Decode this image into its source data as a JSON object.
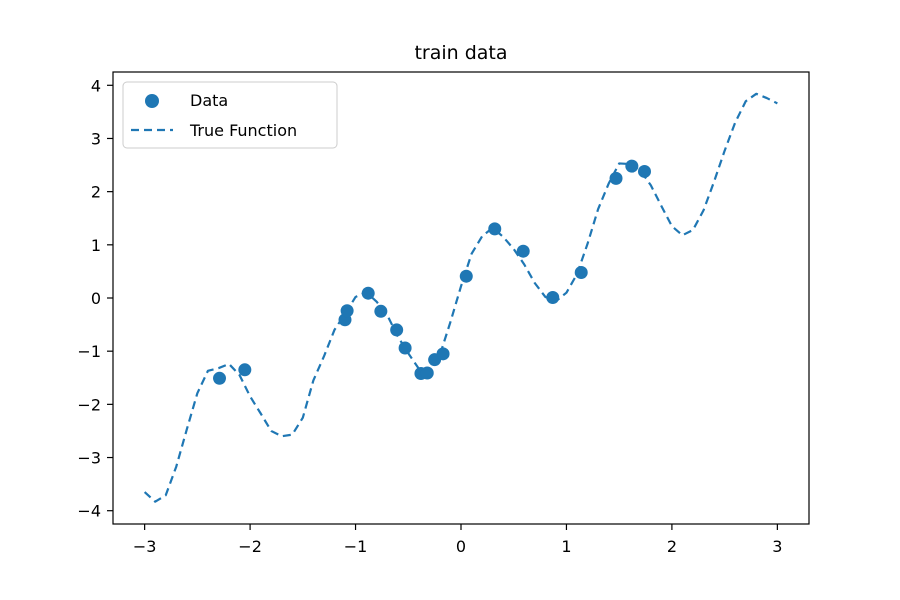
{
  "chart_data": {
    "type": "scatter",
    "title": "train data",
    "xlabel": "",
    "ylabel": "",
    "xlim": [
      -3.3,
      3.3
    ],
    "ylim": [
      -4.25,
      4.25
    ],
    "xticks": [
      -3,
      -2,
      -1,
      0,
      1,
      2,
      3
    ],
    "yticks": [
      -4,
      -3,
      -2,
      -1,
      0,
      1,
      2,
      3,
      4
    ],
    "xtick_labels": [
      "−3",
      "−2",
      "−1",
      "0",
      "1",
      "2",
      "3"
    ],
    "ytick_labels": [
      "−4",
      "−3",
      "−2",
      "−1",
      "0",
      "1",
      "2",
      "3",
      "4"
    ],
    "grid": false,
    "legend_position": "top-left",
    "series": [
      {
        "name": "Data",
        "kind": "scatter",
        "color": "#1f77b4",
        "points": [
          {
            "x": -2.29,
            "y": -1.51
          },
          {
            "x": -2.05,
            "y": -1.35
          },
          {
            "x": -1.1,
            "y": -0.41
          },
          {
            "x": -1.08,
            "y": -0.24
          },
          {
            "x": -0.88,
            "y": 0.09
          },
          {
            "x": -0.76,
            "y": -0.25
          },
          {
            "x": -0.61,
            "y": -0.6
          },
          {
            "x": -0.53,
            "y": -0.94
          },
          {
            "x": -0.38,
            "y": -1.42
          },
          {
            "x": -0.32,
            "y": -1.41
          },
          {
            "x": -0.25,
            "y": -1.16
          },
          {
            "x": -0.17,
            "y": -1.05
          },
          {
            "x": 0.05,
            "y": 0.41
          },
          {
            "x": 0.32,
            "y": 1.3
          },
          {
            "x": 0.59,
            "y": 0.88
          },
          {
            "x": 0.87,
            "y": 0.01
          },
          {
            "x": 1.14,
            "y": 0.48
          },
          {
            "x": 1.47,
            "y": 2.25
          },
          {
            "x": 1.62,
            "y": 2.48
          },
          {
            "x": 1.74,
            "y": 2.38
          }
        ]
      },
      {
        "name": "True Function",
        "kind": "line",
        "color": "#1f77b4",
        "dash": "dashed",
        "x": [
          -3.0,
          -2.9,
          -2.8,
          -2.7,
          -2.6,
          -2.5,
          -2.4,
          -2.3,
          -2.2,
          -2.1,
          -2.0,
          -1.9,
          -1.8,
          -1.7,
          -1.6,
          -1.5,
          -1.4,
          -1.3,
          -1.2,
          -1.1,
          -1.0,
          -0.9,
          -0.8,
          -0.7,
          -0.6,
          -0.5,
          -0.4,
          -0.3,
          -0.2,
          -0.1,
          0.0,
          0.1,
          0.2,
          0.3,
          0.4,
          0.5,
          0.6,
          0.7,
          0.8,
          0.9,
          1.0,
          1.1,
          1.2,
          1.3,
          1.4,
          1.5,
          1.6,
          1.7,
          1.8,
          1.9,
          2.0,
          2.1,
          2.2,
          2.3,
          2.4,
          2.5,
          2.6,
          2.7,
          2.8,
          2.9,
          3.0
        ],
        "y": [
          -3.65,
          -3.83,
          -3.71,
          -3.17,
          -2.47,
          -1.79,
          -1.37,
          -1.32,
          -1.24,
          -1.45,
          -1.85,
          -2.17,
          -2.5,
          -2.6,
          -2.57,
          -2.25,
          -1.55,
          -1.1,
          -0.6,
          -0.3,
          0.02,
          0.11,
          -0.07,
          -0.32,
          -0.72,
          -1.04,
          -1.33,
          -1.38,
          -1.07,
          -0.45,
          0.22,
          0.83,
          1.16,
          1.32,
          1.15,
          0.92,
          0.63,
          0.28,
          0.02,
          -0.06,
          0.1,
          0.45,
          1.02,
          1.67,
          2.15,
          2.53,
          2.52,
          2.4,
          2.12,
          1.73,
          1.35,
          1.18,
          1.28,
          1.65,
          2.19,
          2.77,
          3.3,
          3.7,
          3.84,
          3.76,
          3.66
        ]
      }
    ]
  }
}
